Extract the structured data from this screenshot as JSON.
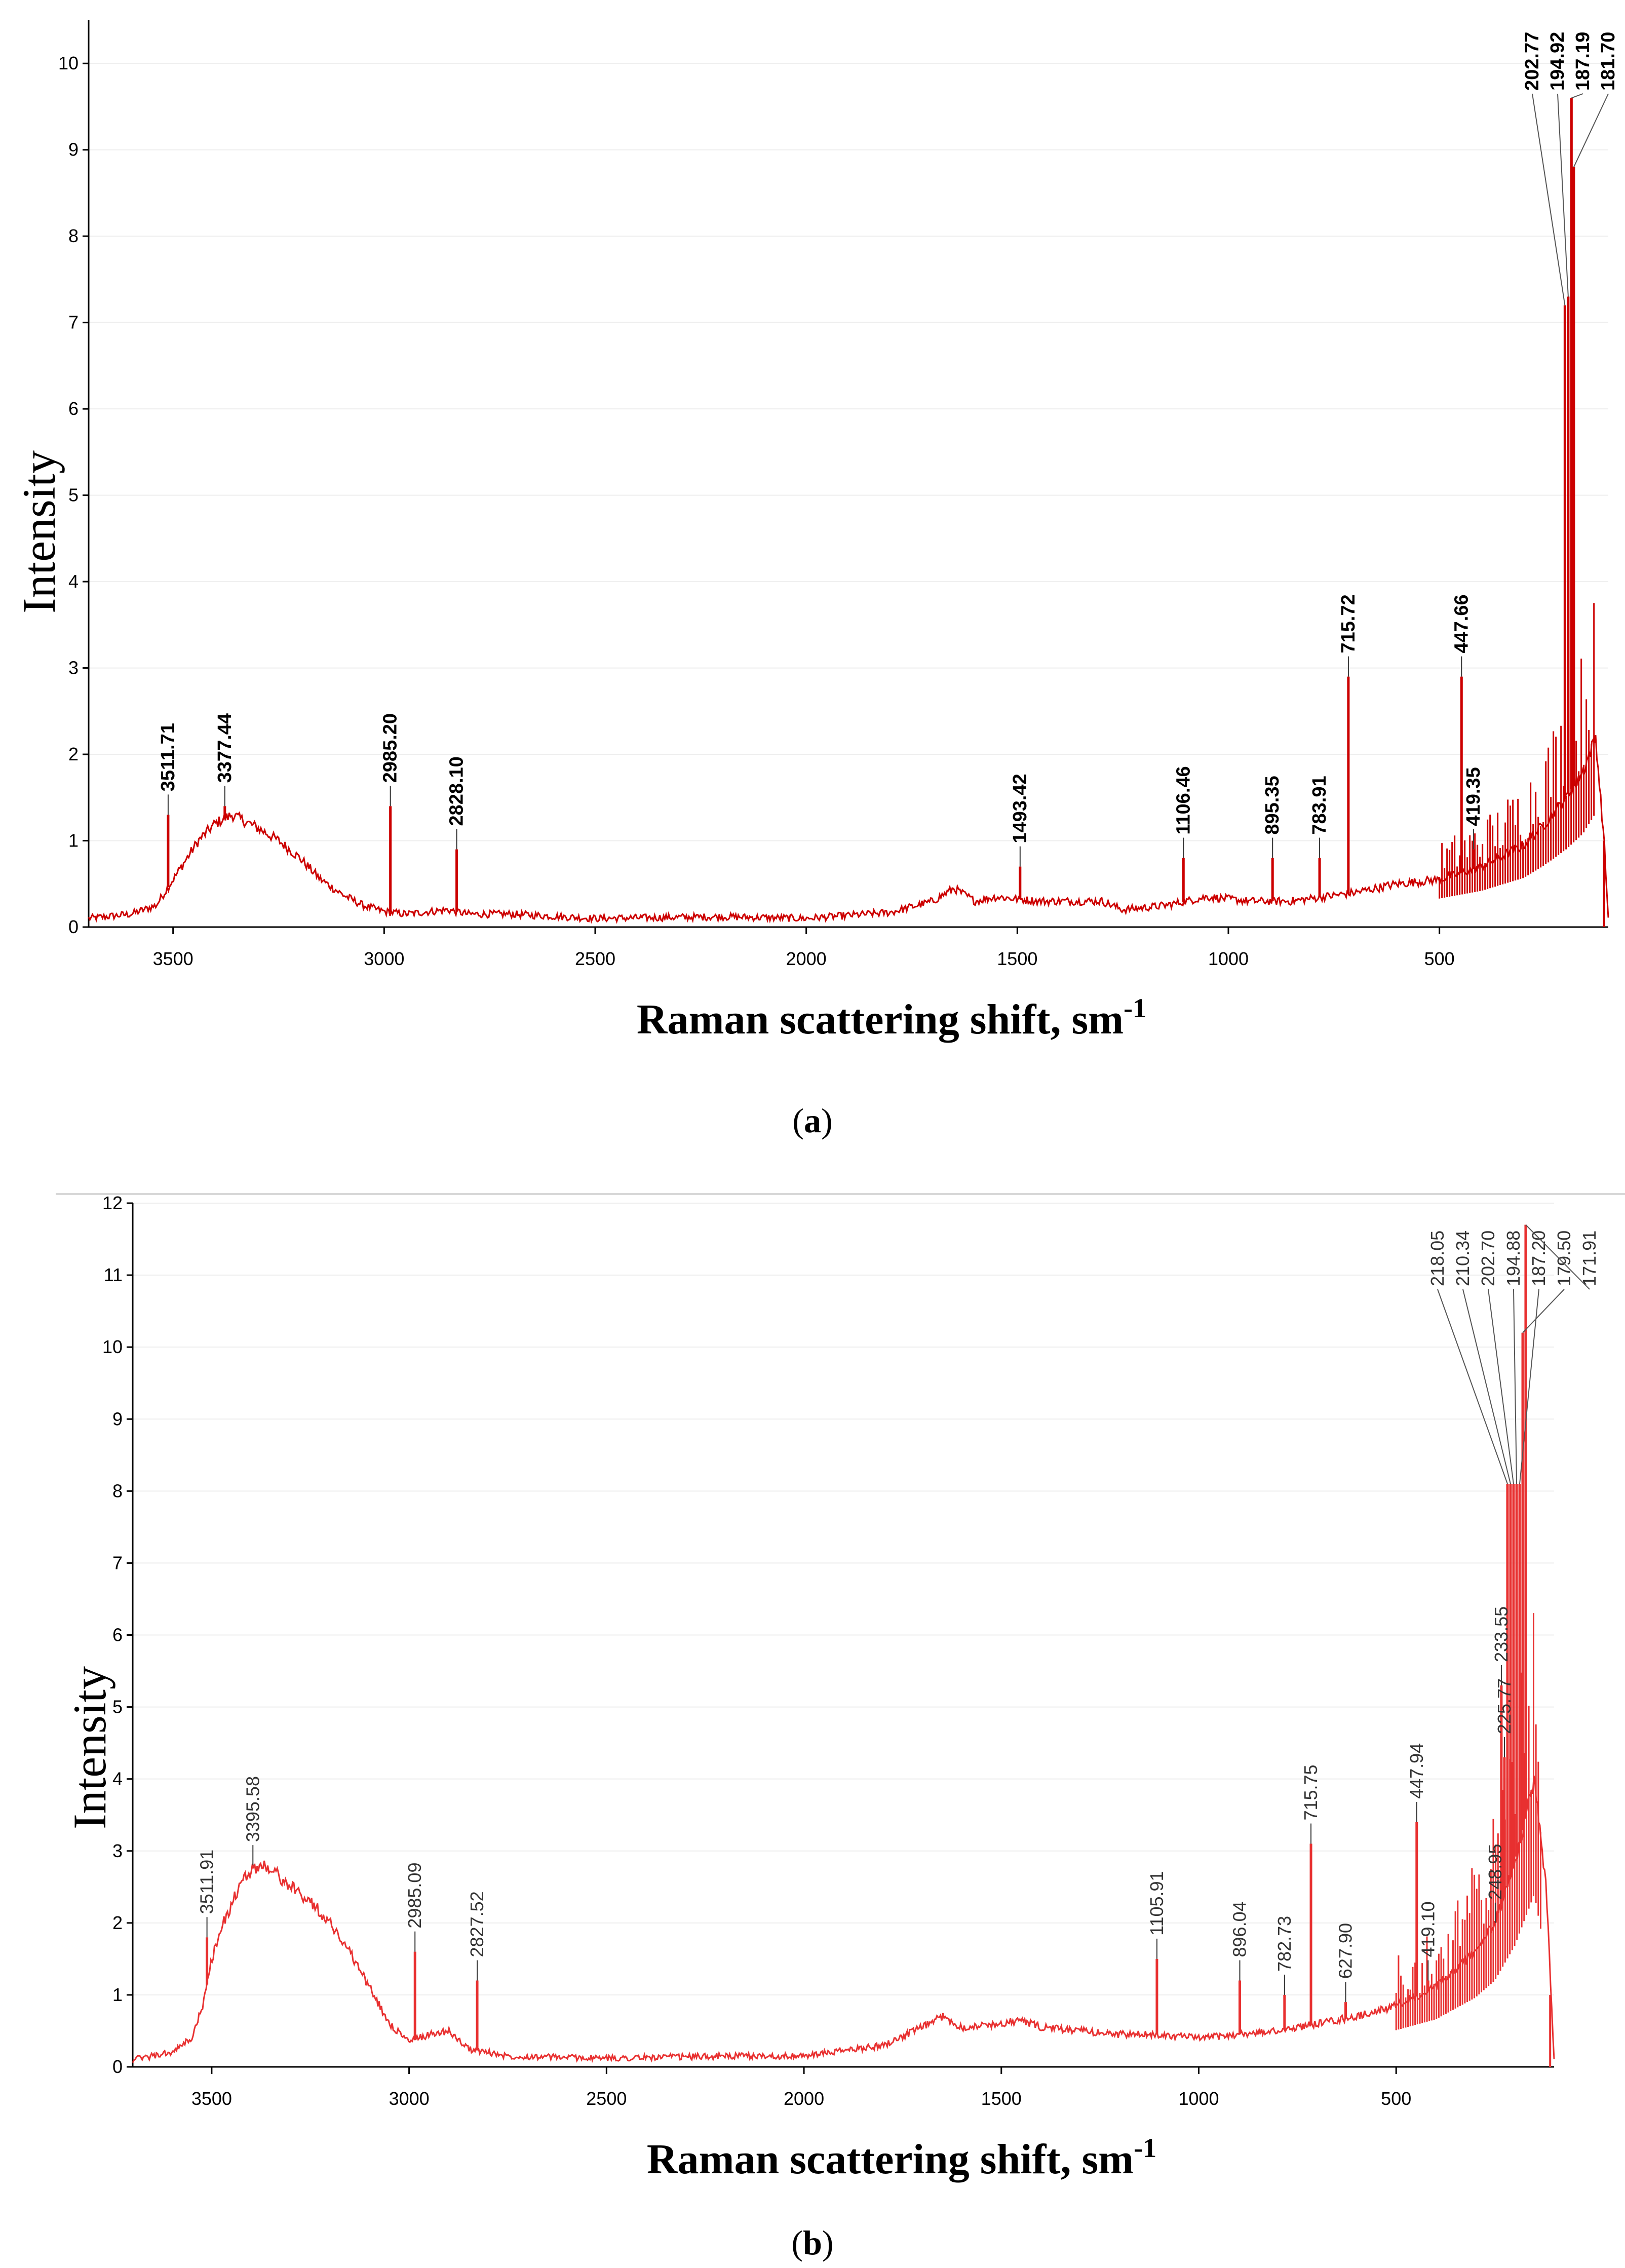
{
  "chart_data": [
    {
      "type": "line",
      "panel": "a",
      "caption_letter": "a",
      "xlabel": "Raman scattering shift, sm",
      "xlabel_superscript": "-1",
      "ylabel": "Intensity",
      "xlim": [
        3700,
        100
      ],
      "ylim": [
        0,
        10.5
      ],
      "x_ticks": [
        3500,
        3000,
        2500,
        2000,
        1500,
        1000,
        500
      ],
      "y_ticks": [
        0,
        1,
        2,
        3,
        4,
        5,
        6,
        7,
        8,
        9,
        10
      ],
      "line_color": "#cc0000",
      "peaks": [
        {
          "x": 3511.71,
          "y": 1.3,
          "label": "3511.71"
        },
        {
          "x": 3377.44,
          "y": 1.4,
          "label": "3377.44"
        },
        {
          "x": 2985.2,
          "y": 1.4,
          "label": "2985.20"
        },
        {
          "x": 2828.1,
          "y": 0.9,
          "label": "2828.10"
        },
        {
          "x": 1493.42,
          "y": 0.7,
          "label": "1493.42"
        },
        {
          "x": 1106.46,
          "y": 0.8,
          "label": "1106.46"
        },
        {
          "x": 895.35,
          "y": 0.8,
          "label": "895.35"
        },
        {
          "x": 783.91,
          "y": 0.8,
          "label": "783.91"
        },
        {
          "x": 715.72,
          "y": 2.9,
          "label": "715.72"
        },
        {
          "x": 447.66,
          "y": 2.9,
          "label": "447.66"
        },
        {
          "x": 419.35,
          "y": 0.9,
          "label": "419.35"
        },
        {
          "x": 202.77,
          "y": 7.2,
          "label": "202.77"
        },
        {
          "x": 194.92,
          "y": 7.3,
          "label": "194.92"
        },
        {
          "x": 187.19,
          "y": 9.6,
          "label": "187.19"
        },
        {
          "x": 181.7,
          "y": 8.8,
          "label": "181.70"
        }
      ],
      "baseline": [
        [
          3700,
          0.1
        ],
        [
          3600,
          0.15
        ],
        [
          3540,
          0.25
        ],
        [
          3520,
          0.4
        ],
        [
          3480,
          0.7
        ],
        [
          3440,
          1.0
        ],
        [
          3400,
          1.2
        ],
        [
          3360,
          1.3
        ],
        [
          3300,
          1.15
        ],
        [
          3250,
          1.0
        ],
        [
          3200,
          0.8
        ],
        [
          3150,
          0.55
        ],
        [
          3100,
          0.38
        ],
        [
          3050,
          0.25
        ],
        [
          3000,
          0.18
        ],
        [
          2950,
          0.15
        ],
        [
          2850,
          0.2
        ],
        [
          2800,
          0.15
        ],
        [
          2700,
          0.15
        ],
        [
          2500,
          0.1
        ],
        [
          2200,
          0.12
        ],
        [
          2000,
          0.1
        ],
        [
          1800,
          0.17
        ],
        [
          1700,
          0.3
        ],
        [
          1650,
          0.45
        ],
        [
          1600,
          0.3
        ],
        [
          1550,
          0.35
        ],
        [
          1450,
          0.3
        ],
        [
          1300,
          0.3
        ],
        [
          1250,
          0.2
        ],
        [
          1150,
          0.25
        ],
        [
          1050,
          0.35
        ],
        [
          950,
          0.3
        ],
        [
          850,
          0.3
        ],
        [
          700,
          0.4
        ],
        [
          600,
          0.5
        ],
        [
          500,
          0.55
        ],
        [
          400,
          0.7
        ],
        [
          300,
          0.95
        ],
        [
          250,
          1.2
        ],
        [
          200,
          1.5
        ],
        [
          160,
          1.8
        ],
        [
          130,
          2.2
        ],
        [
          110,
          1.0
        ],
        [
          100,
          0.1
        ]
      ]
    },
    {
      "type": "line",
      "panel": "b",
      "caption_letter": "b",
      "xlabel": "Raman scattering shift, sm",
      "xlabel_superscript": "-1",
      "ylabel": "Intensity",
      "xlim": [
        3700,
        100
      ],
      "ylim": [
        0,
        12
      ],
      "x_ticks": [
        3500,
        3000,
        2500,
        2000,
        1500,
        1000,
        500
      ],
      "y_ticks": [
        0,
        1,
        2,
        3,
        4,
        5,
        6,
        7,
        8,
        9,
        10,
        11,
        12
      ],
      "line_color": "#e83030",
      "peaks": [
        {
          "x": 3511.91,
          "y": 1.8,
          "label": "3511.91"
        },
        {
          "x": 3395.58,
          "y": 2.8,
          "label": "3395.58"
        },
        {
          "x": 2985.09,
          "y": 1.6,
          "label": "2985.09"
        },
        {
          "x": 2827.52,
          "y": 1.2,
          "label": "2827.52"
        },
        {
          "x": 1105.91,
          "y": 1.5,
          "label": "1105.91"
        },
        {
          "x": 896.04,
          "y": 1.2,
          "label": "896.04"
        },
        {
          "x": 782.73,
          "y": 1.0,
          "label": "782.73"
        },
        {
          "x": 715.75,
          "y": 3.1,
          "label": "715.75"
        },
        {
          "x": 627.9,
          "y": 0.9,
          "label": "627.90"
        },
        {
          "x": 447.94,
          "y": 3.4,
          "label": "447.94"
        },
        {
          "x": 419.1,
          "y": 1.2,
          "label": "419.10"
        },
        {
          "x": 248.95,
          "y": 2.0,
          "label": "248.95"
        },
        {
          "x": 233.55,
          "y": 5.3,
          "label": "233.55"
        },
        {
          "x": 225.77,
          "y": 4.3,
          "label": "225.77"
        },
        {
          "x": 218.05,
          "y": 8.1,
          "label": "218.05"
        },
        {
          "x": 210.34,
          "y": 8.1,
          "label": "210.34"
        },
        {
          "x": 202.7,
          "y": 8.1,
          "label": "202.70"
        },
        {
          "x": 194.88,
          "y": 8.1,
          "label": "194.88"
        },
        {
          "x": 187.2,
          "y": 8.1,
          "label": "187.20"
        },
        {
          "x": 179.5,
          "y": 10.2,
          "label": "179.50"
        },
        {
          "x": 171.91,
          "y": 11.7,
          "label": "171.91"
        }
      ],
      "baseline": [
        [
          3700,
          0.1
        ],
        [
          3600,
          0.2
        ],
        [
          3550,
          0.4
        ],
        [
          3520,
          0.9
        ],
        [
          3500,
          1.5
        ],
        [
          3470,
          2.0
        ],
        [
          3430,
          2.5
        ],
        [
          3400,
          2.75
        ],
        [
          3360,
          2.8
        ],
        [
          3300,
          2.5
        ],
        [
          3250,
          2.3
        ],
        [
          3200,
          2.0
        ],
        [
          3150,
          1.6
        ],
        [
          3100,
          1.1
        ],
        [
          3050,
          0.6
        ],
        [
          3000,
          0.35
        ],
        [
          2950,
          0.45
        ],
        [
          2900,
          0.5
        ],
        [
          2850,
          0.25
        ],
        [
          2750,
          0.15
        ],
        [
          2500,
          0.12
        ],
        [
          2200,
          0.15
        ],
        [
          2000,
          0.15
        ],
        [
          1800,
          0.3
        ],
        [
          1700,
          0.55
        ],
        [
          1650,
          0.7
        ],
        [
          1600,
          0.55
        ],
        [
          1500,
          0.6
        ],
        [
          1450,
          0.65
        ],
        [
          1400,
          0.55
        ],
        [
          1300,
          0.5
        ],
        [
          1200,
          0.45
        ],
        [
          1100,
          0.45
        ],
        [
          1000,
          0.4
        ],
        [
          900,
          0.45
        ],
        [
          800,
          0.5
        ],
        [
          700,
          0.6
        ],
        [
          600,
          0.7
        ],
        [
          500,
          0.85
        ],
        [
          400,
          1.1
        ],
        [
          300,
          1.6
        ],
        [
          250,
          2.0
        ],
        [
          200,
          2.8
        ],
        [
          150,
          4.0
        ],
        [
          120,
          2.5
        ],
        [
          100,
          0.1
        ]
      ]
    }
  ]
}
